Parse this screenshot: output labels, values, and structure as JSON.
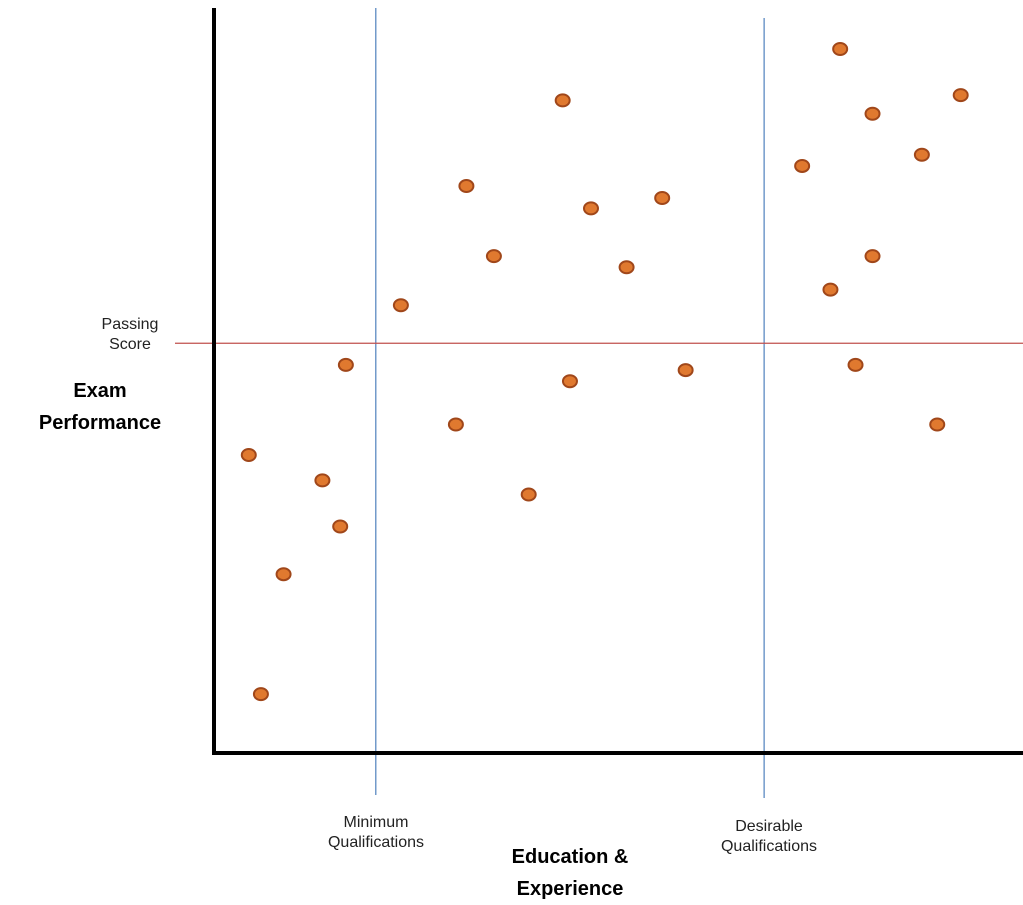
{
  "chart_data": {
    "type": "scatter",
    "xlabel": [
      "Education &",
      "Experience"
    ],
    "ylabel": [
      "Exam",
      "Performance"
    ],
    "xlim": [
      0,
      100
    ],
    "ylim": [
      0,
      100
    ],
    "grid": false,
    "reference_lines": {
      "vertical": [
        {
          "x": 20,
          "label": [
            "Minimum",
            "Qualifications"
          ],
          "color": "#4f81bd"
        },
        {
          "x": 68,
          "label": [
            "Desirable",
            "Qualifications"
          ],
          "color": "#4f81bd"
        }
      ],
      "horizontal": [
        {
          "y": 55,
          "label": [
            "Passing",
            "Score"
          ],
          "color": "#c0504d"
        }
      ]
    },
    "point_color": "#e0792f",
    "point_edge_color": "#a0471a",
    "points": [
      {
        "x": 4.3,
        "y": 40
      },
      {
        "x": 13.4,
        "y": 36.6
      },
      {
        "x": 15.6,
        "y": 30.4
      },
      {
        "x": 8.6,
        "y": 24
      },
      {
        "x": 5.8,
        "y": 7.9
      },
      {
        "x": 16.3,
        "y": 52.1
      },
      {
        "x": 23.1,
        "y": 60.1
      },
      {
        "x": 29.9,
        "y": 44.1
      },
      {
        "x": 38.9,
        "y": 34.7
      },
      {
        "x": 44.0,
        "y": 49.9
      },
      {
        "x": 58.3,
        "y": 51.4
      },
      {
        "x": 31.2,
        "y": 76.1
      },
      {
        "x": 34.6,
        "y": 66.7
      },
      {
        "x": 43.1,
        "y": 87.6
      },
      {
        "x": 46.6,
        "y": 73.1
      },
      {
        "x": 51.0,
        "y": 65.2
      },
      {
        "x": 55.4,
        "y": 74.5
      },
      {
        "x": 72.7,
        "y": 78.8
      },
      {
        "x": 77.4,
        "y": 94.5
      },
      {
        "x": 81.4,
        "y": 85.8
      },
      {
        "x": 87.5,
        "y": 80.3
      },
      {
        "x": 92.3,
        "y": 88.3
      },
      {
        "x": 76.2,
        "y": 62.2
      },
      {
        "x": 81.4,
        "y": 66.7
      },
      {
        "x": 79.3,
        "y": 52.1
      },
      {
        "x": 89.4,
        "y": 44.1
      }
    ]
  }
}
